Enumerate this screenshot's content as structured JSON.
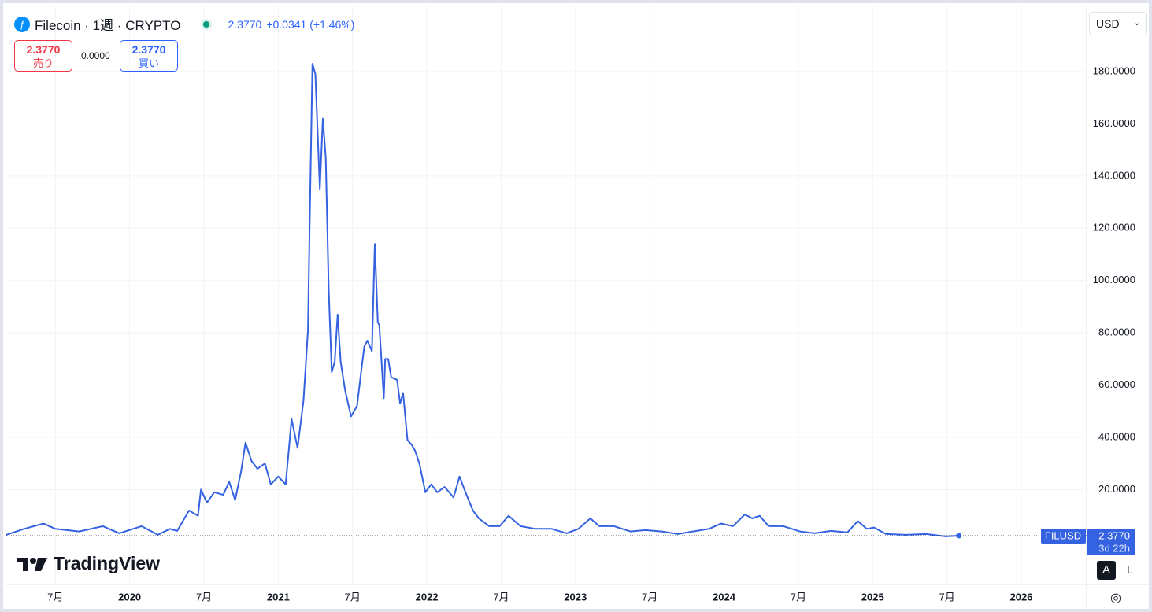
{
  "header": {
    "symbol": "Filecoin · 1週 · CRYPTO",
    "price": "2.3770",
    "change": "+0.0341 (+1.46%)"
  },
  "trade": {
    "sell_price": "2.3770",
    "sell_label": "売り",
    "spread": "0.0000",
    "buy_price": "2.3770",
    "buy_label": "買い"
  },
  "currency": "USD",
  "price_label": {
    "price": "2.3770",
    "countdown": "3d 22h"
  },
  "logo": "TradingView",
  "scale_buttons": [
    "A",
    "L"
  ],
  "chart_data": {
    "type": "line",
    "x": [
      2019.17,
      2019.29,
      2019.42,
      2019.5,
      2019.66,
      2019.82,
      2019.93,
      2020.08,
      2020.19,
      2020.27,
      2020.32,
      2020.4,
      2020.46,
      2020.48,
      2020.52,
      2020.57,
      2020.63,
      2020.67,
      2020.71,
      2020.75,
      2020.78,
      2020.82,
      2020.86,
      2020.91,
      2020.95,
      2021.0,
      2021.05,
      2021.09,
      2021.13,
      2021.17,
      2021.2,
      2021.21,
      2021.23,
      2021.25,
      2021.28,
      2021.3,
      2021.32,
      2021.34,
      2021.36,
      2021.38,
      2021.4,
      2021.42,
      2021.45,
      2021.49,
      2021.53,
      2021.56,
      2021.58,
      2021.6,
      2021.63,
      2021.65,
      2021.67,
      2021.68,
      2021.71,
      2021.72,
      2021.74,
      2021.76,
      2021.8,
      2021.82,
      2021.84,
      2021.87,
      2021.9,
      2021.92,
      2021.95,
      2021.99,
      2022.03,
      2022.07,
      2022.12,
      2022.18,
      2022.22,
      2022.26,
      2022.31,
      2022.35,
      2022.42,
      2022.49,
      2022.55,
      2022.63,
      2022.73,
      2022.84,
      2022.94,
      2023.02,
      2023.1,
      2023.16,
      2023.26,
      2023.37,
      2023.47,
      2023.58,
      2023.69,
      2023.79,
      2023.9,
      2023.98,
      2024.06,
      2024.14,
      2024.19,
      2024.24,
      2024.3,
      2024.4,
      2024.51,
      2024.61,
      2024.72,
      2024.83,
      2024.9,
      2024.96,
      2025.01,
      2025.09,
      2025.22,
      2025.36,
      2025.49,
      2025.58
    ],
    "series": [
      {
        "name": "FILUSD",
        "color": "#3462e0",
        "values": [
          2.7,
          5,
          7,
          5,
          4,
          6,
          3.3,
          6,
          2.7,
          5,
          4.2,
          12,
          10,
          20,
          15,
          19,
          18,
          23,
          16,
          27,
          38,
          31,
          28,
          30,
          22,
          25,
          22,
          47,
          36,
          54,
          81,
          117,
          183,
          179,
          135,
          162,
          147,
          96,
          65,
          69,
          87,
          69,
          58,
          48,
          52,
          66,
          75,
          77,
          73,
          114,
          84,
          83,
          55,
          70,
          70,
          63,
          62,
          53,
          57,
          39,
          37,
          35,
          30,
          19,
          22,
          19,
          21,
          17,
          25,
          19,
          12,
          9,
          6,
          6,
          10,
          6,
          5,
          5,
          3.3,
          5,
          9,
          6,
          6,
          4,
          4.5,
          4,
          3,
          4,
          5,
          7,
          6,
          10.5,
          9,
          10,
          6,
          6,
          4,
          3.3,
          4.2,
          3.6,
          8,
          5,
          5.5,
          3,
          2.7,
          3,
          2.1,
          2.377
        ]
      }
    ],
    "xlim": [
      2019.17,
      2026.44
    ],
    "xticks": [
      {
        "value": 2019.5,
        "label": "7月"
      },
      2020,
      {
        "value": 2020.5,
        "label": "7月"
      },
      2021,
      {
        "value": 2021.5,
        "label": "7月"
      },
      2022,
      {
        "value": 2022.5,
        "label": "7月"
      },
      2023,
      {
        "value": 2023.5,
        "label": "7月"
      },
      2024,
      {
        "value": 2024.5,
        "label": "7月"
      },
      2025,
      {
        "value": 2025.5,
        "label": "7月"
      },
      2026
    ],
    "ylim": [
      -16.3,
      205
    ],
    "yticks": [
      {
        "value": 20,
        "label": "20.0000"
      },
      {
        "value": 40,
        "label": "40.0000"
      },
      {
        "value": 60,
        "label": "60.0000"
      },
      {
        "value": 80,
        "label": "80.0000"
      },
      {
        "value": 100,
        "label": "100.0000"
      },
      {
        "value": 120,
        "label": "120.0000"
      },
      {
        "value": 140,
        "label": "140.0000"
      },
      {
        "value": 160,
        "label": "160.0000"
      },
      {
        "value": 180,
        "label": "180.0000"
      }
    ],
    "grid": true
  }
}
